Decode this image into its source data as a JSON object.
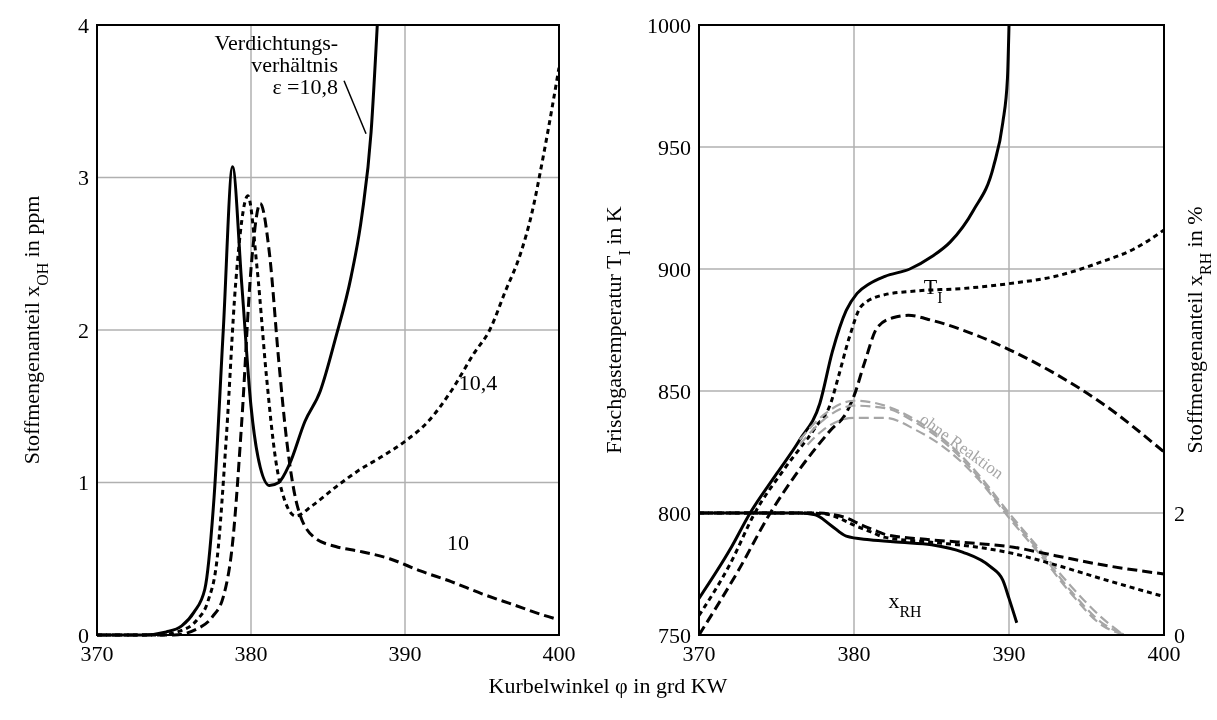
{
  "chart_data": [
    {
      "type": "line",
      "xlabel": "Kurbelwinkel φ in grd KW",
      "ylabel": "Stoffmengenanteil  x$_{OH}$ in ppm",
      "xlim": [
        370,
        400
      ],
      "xticks": [
        370,
        380,
        390,
        400
      ],
      "ylim": [
        0,
        4
      ],
      "yticks": [
        0,
        1,
        2,
        3,
        4
      ],
      "grid": true,
      "annotations": [
        {
          "text": "Verdichtungs-\nverhältnis\nε =10,8",
          "x": 387.6,
          "y": 3.3
        },
        "10,4",
        "10"
      ],
      "series": [
        {
          "color": "#000000",
          "line_style": "solid",
          "x": [
            370,
            373,
            374.5,
            375.5,
            376.3,
            377,
            377.6,
            378.2,
            378.8,
            379.4,
            380,
            380.6,
            381.2,
            381.8,
            382.5,
            383.5,
            384.5,
            385.5,
            386.5,
            387.2,
            387.8,
            388.2
          ],
          "values": [
            0,
            0,
            0.02,
            0.06,
            0.15,
            0.3,
            0.9,
            2.0,
            3.07,
            2.3,
            1.5,
            1.1,
            0.98,
            1.0,
            1.12,
            1.4,
            1.6,
            1.95,
            2.35,
            2.75,
            3.3,
            4.0
          ]
        },
        {
          "color": "#000000",
          "line_style": "dotted",
          "x": [
            370,
            374,
            375.5,
            376.5,
            377.2,
            377.8,
            378.4,
            379,
            379.8,
            380.4,
            381,
            381.6,
            382.2,
            382.9,
            384,
            385.5,
            387,
            388.5,
            390,
            391.5,
            393,
            394.5,
            395.5,
            396.5,
            397.5,
            398.2,
            399,
            400
          ],
          "values": [
            0,
            0,
            0.03,
            0.1,
            0.22,
            0.5,
            1.3,
            2.3,
            2.88,
            2.4,
            1.7,
            1.15,
            0.88,
            0.78,
            0.85,
            0.97,
            1.08,
            1.17,
            1.27,
            1.4,
            1.6,
            1.85,
            2.0,
            2.25,
            2.5,
            2.75,
            3.15,
            3.72
          ]
        },
        {
          "color": "#000000",
          "line_style": "dashed",
          "x": [
            370,
            375,
            376.5,
            377.5,
            378.2,
            378.8,
            379.4,
            380,
            380.6,
            381.2,
            381.8,
            382.3,
            383,
            384.1,
            385.5,
            387,
            389,
            391,
            393,
            395,
            397,
            399,
            400
          ],
          "values": [
            0,
            0,
            0.04,
            0.12,
            0.25,
            0.6,
            1.4,
            2.4,
            2.83,
            2.5,
            1.8,
            1.29,
            0.85,
            0.64,
            0.58,
            0.55,
            0.5,
            0.42,
            0.35,
            0.27,
            0.2,
            0.13,
            0.1
          ]
        }
      ]
    },
    {
      "type": "line",
      "ylabel": "Frischgastemperatur T$_{I}$ in K",
      "y2label": "Stoffmengenanteil  x$_{RH}$ in %",
      "xlim": [
        370,
        400
      ],
      "xticks": [
        370,
        380,
        390,
        400
      ],
      "ylim": [
        750,
        1000
      ],
      "yticks": [
        750,
        800,
        850,
        900,
        950,
        1000
      ],
      "y2lim": [
        0,
        10
      ],
      "y2ticks": [
        0,
        2
      ],
      "grid": true,
      "annotations": [
        {
          "text": "T$_{I}$",
          "x": 384.5,
          "y": 893
        },
        "x$_{RH}$",
        "ohne Reaktion"
      ],
      "series": [
        {
          "color": "#000000",
          "line_style": "solid",
          "x": [
            370,
            372,
            373.3,
            375,
            376.5,
            377.8,
            378.6,
            379.5,
            380.2,
            381,
            382,
            383.6,
            385,
            386.2,
            387.7,
            389,
            389.6,
            389.9,
            390
          ],
          "values": [
            765,
            785,
            800,
            816,
            830,
            845,
            866,
            883,
            890,
            894,
            897,
            900,
            905,
            911,
            924,
            942,
            960,
            978,
            1000
          ]
        },
        {
          "color": "#000000",
          "line_style": "dotted",
          "x": [
            370,
            372,
            373.6,
            375.5,
            377.5,
            378.5,
            379,
            379.7,
            380.5,
            382,
            384,
            387,
            390,
            393,
            396,
            398,
            400
          ],
          "values": [
            758,
            779,
            800,
            818,
            835,
            845,
            856,
            872,
            885,
            889.5,
            891,
            892,
            894,
            897,
            903,
            908,
            916
          ]
        },
        {
          "color": "#000000",
          "line_style": "dashed",
          "x": [
            370,
            372.5,
            374.6,
            376.5,
            378.5,
            379.5,
            380,
            380.7,
            381.5,
            382.5,
            383.5,
            385,
            387,
            390,
            393,
            396,
            400
          ],
          "values": [
            750,
            776,
            800,
            818,
            834,
            841,
            848,
            862,
            876,
            880,
            881,
            879,
            875,
            867,
            857,
            845,
            825
          ]
        },
        {
          "color": "#a6a6a6",
          "line_style": "dashed",
          "x": [
            376.5,
            378,
            380,
            382,
            384,
            386,
            388,
            390,
            392,
            394,
            396,
            397.4
          ],
          "values": [
            830,
            840,
            846,
            844,
            838,
            829,
            816,
            800,
            785,
            770,
            757,
            750
          ]
        },
        {
          "color": "#a6a6a6",
          "line_style": "dashed",
          "x": [
            376.5,
            378,
            380,
            382,
            384,
            386,
            388,
            390,
            392,
            394,
            396,
            397.5
          ],
          "values": [
            828,
            838,
            844,
            843,
            837,
            828,
            815,
            799,
            784,
            768,
            755,
            750
          ]
        },
        {
          "color": "#a6a6a6",
          "line_style": "dashed",
          "x": [
            377,
            378,
            380,
            382,
            384,
            386,
            388,
            390,
            392,
            394,
            396,
            397.6
          ],
          "values": [
            828,
            834,
            839,
            839,
            834,
            826,
            814,
            798,
            783,
            767,
            754,
            750
          ]
        },
        {
          "color": "#000000",
          "line_style": "solid",
          "axis": "y2",
          "x": [
            370,
            376.5,
            377.5,
            378.5,
            379.5,
            381,
            383,
            385,
            387,
            388.8,
            389.6,
            390,
            390.5
          ],
          "values": [
            2,
            2,
            1.97,
            1.8,
            1.62,
            1.56,
            1.52,
            1.48,
            1.36,
            1.12,
            0.9,
            0.6,
            0.2
          ]
        },
        {
          "color": "#000000",
          "line_style": "dotted",
          "axis": "y2",
          "x": [
            370,
            377,
            378,
            379,
            380,
            381,
            382,
            385,
            388,
            390,
            393,
            396,
            400
          ],
          "values": [
            2,
            2,
            1.99,
            1.92,
            1.8,
            1.7,
            1.6,
            1.52,
            1.44,
            1.35,
            1.15,
            0.92,
            0.63
          ]
        },
        {
          "color": "#000000",
          "line_style": "dashed",
          "axis": "y2",
          "x": [
            370,
            377.5,
            378.5,
            379.5,
            380.5,
            381.5,
            382,
            385,
            388,
            390,
            393,
            396,
            400
          ],
          "values": [
            2,
            2,
            1.98,
            1.92,
            1.8,
            1.7,
            1.65,
            1.56,
            1.5,
            1.45,
            1.3,
            1.15,
            1.0
          ]
        }
      ]
    }
  ]
}
